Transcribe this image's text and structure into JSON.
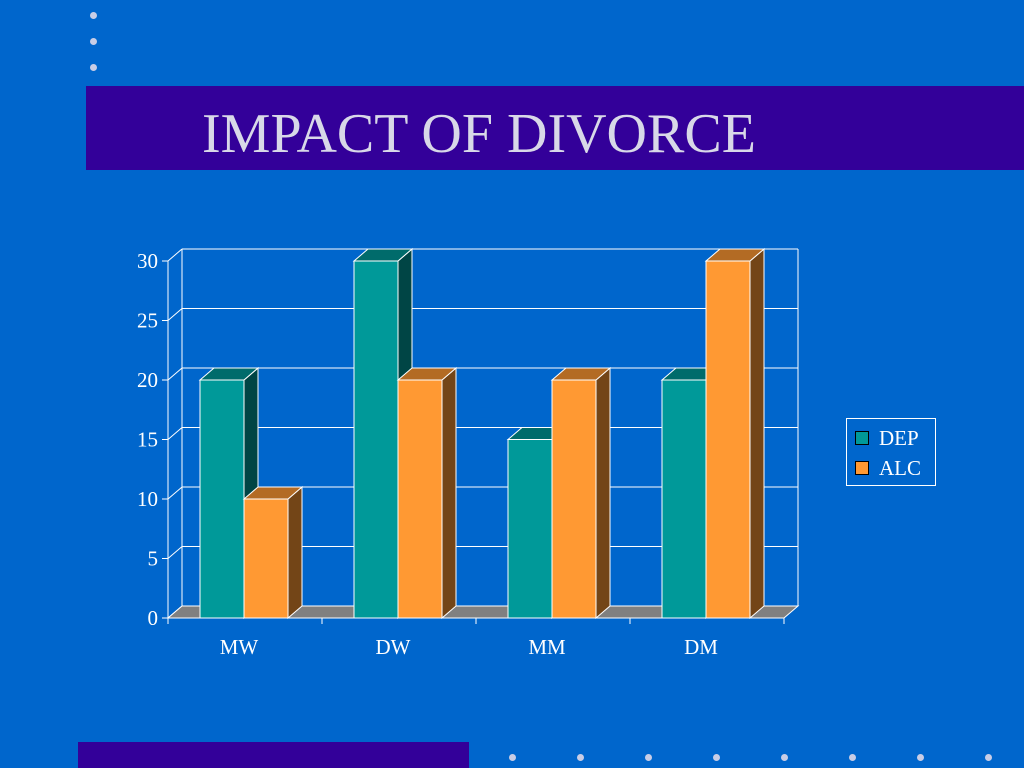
{
  "slide": {
    "title": "IMPACT OF DIVORCE",
    "colors": {
      "background": "#0066cc",
      "band": "#330099",
      "title_text": "#d8d8e8",
      "dots": "#c8cde6"
    }
  },
  "chart_data": {
    "type": "bar",
    "categories": [
      "MW",
      "DW",
      "MM",
      "DM"
    ],
    "series": [
      {
        "name": "DEP",
        "values": [
          20,
          30,
          15,
          20
        ],
        "color": "#009999"
      },
      {
        "name": "ALC",
        "values": [
          10,
          20,
          20,
          30
        ],
        "color": "#ff9933"
      }
    ],
    "ylim": [
      0,
      30
    ],
    "yticks": [
      "0",
      "5",
      "10",
      "15",
      "20",
      "25",
      "30"
    ],
    "grid": true,
    "legend": "right",
    "style": "3d"
  }
}
